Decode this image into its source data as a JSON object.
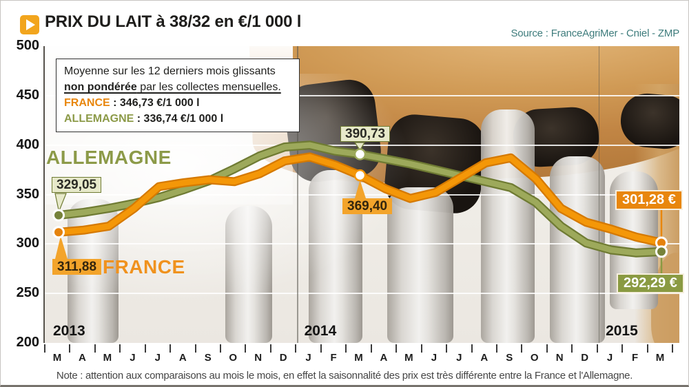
{
  "header": {
    "title": "PRIX DU LAIT à 38/32 en €/1 000 l",
    "source": "Source : FranceAgriMer - Cniel - ZMP"
  },
  "legend_box": {
    "line1": "Moyenne sur les 12 derniers mois glissants",
    "line2_bold": "non pondérée",
    "line2_rest": " par les collectes mensuelles.",
    "france_label": "FRANCE",
    "france_value": " : 346,73 €/1 000 l",
    "allemagne_label": "ALLEMAGNE",
    "allemagne_value": " : 336,74 €/1 000 l"
  },
  "series_labels": {
    "france": "FRANCE",
    "allemagne": "ALLEMAGNE"
  },
  "annotations": {
    "de_start": "329,05",
    "fr_start": "311,88",
    "de_mid": "390,73",
    "fr_mid": "369,40",
    "fr_end": "301,28 €",
    "de_end": "292,29 €"
  },
  "note": "Note : attention aux comparaisons au mois le mois, en effet la saisonnalité des prix est très différente entre la France et l'Allemagne.",
  "colors": {
    "france_line": "#F49708",
    "france_edge": "#D57900",
    "allemagne_line": "#9DA95B",
    "allemagne_edge": "#6F7B33",
    "title_icon_orange": "#F2A51D",
    "source_teal": "#3E7C7C"
  },
  "chart_data": {
    "type": "line",
    "title": "PRIX DU LAIT à 38/32 en €/1 000 l",
    "ylabel": "€/1 000 l",
    "ylim": [
      200,
      500
    ],
    "yticks": [
      500,
      450,
      400,
      350,
      300,
      250,
      200
    ],
    "grid": true,
    "x_months": [
      "M",
      "A",
      "M",
      "J",
      "J",
      "A",
      "S",
      "O",
      "N",
      "D",
      "J",
      "F",
      "M",
      "A",
      "M",
      "J",
      "J",
      "A",
      "S",
      "O",
      "N",
      "D",
      "J",
      "F",
      "M"
    ],
    "years": [
      {
        "label": "2013",
        "start_index": 0
      },
      {
        "label": "2014",
        "start_index": 10
      },
      {
        "label": "2015",
        "start_index": 22
      }
    ],
    "series": [
      {
        "name": "FRANCE",
        "color": "#F49708",
        "edge": "#D57900",
        "dot": "#E5820D",
        "values": [
          311.88,
          314,
          318,
          336,
          358,
          362,
          365,
          363,
          371,
          384,
          388,
          380,
          369.4,
          356,
          346,
          352,
          367,
          382,
          387,
          366,
          336,
          322,
          315,
          307,
          301.28
        ]
      },
      {
        "name": "ALLEMAGNE",
        "color": "#9DA95B",
        "edge": "#6F7B33",
        "dot": "#76823A",
        "values": [
          329.05,
          332,
          336,
          341,
          347,
          355,
          364,
          376,
          389,
          398,
          400,
          394,
          390.73,
          386,
          381,
          375,
          369,
          363,
          357,
          342,
          318,
          301,
          294,
          291,
          292.29
        ]
      }
    ],
    "callouts": [
      {
        "series": "ALLEMAGNE",
        "index": 0,
        "label": "329,05",
        "marker": "dot"
      },
      {
        "series": "FRANCE",
        "index": 0,
        "label": "311,88",
        "marker": "dot"
      },
      {
        "series": "ALLEMAGNE",
        "index": 12,
        "label": "390,73",
        "marker": "ring"
      },
      {
        "series": "FRANCE",
        "index": 12,
        "label": "369,40",
        "marker": "ring"
      },
      {
        "series": "FRANCE",
        "index": 24,
        "label": "301,28 €",
        "marker": "dot"
      },
      {
        "series": "ALLEMAGNE",
        "index": 24,
        "label": "292,29 €",
        "marker": "dot"
      }
    ]
  }
}
